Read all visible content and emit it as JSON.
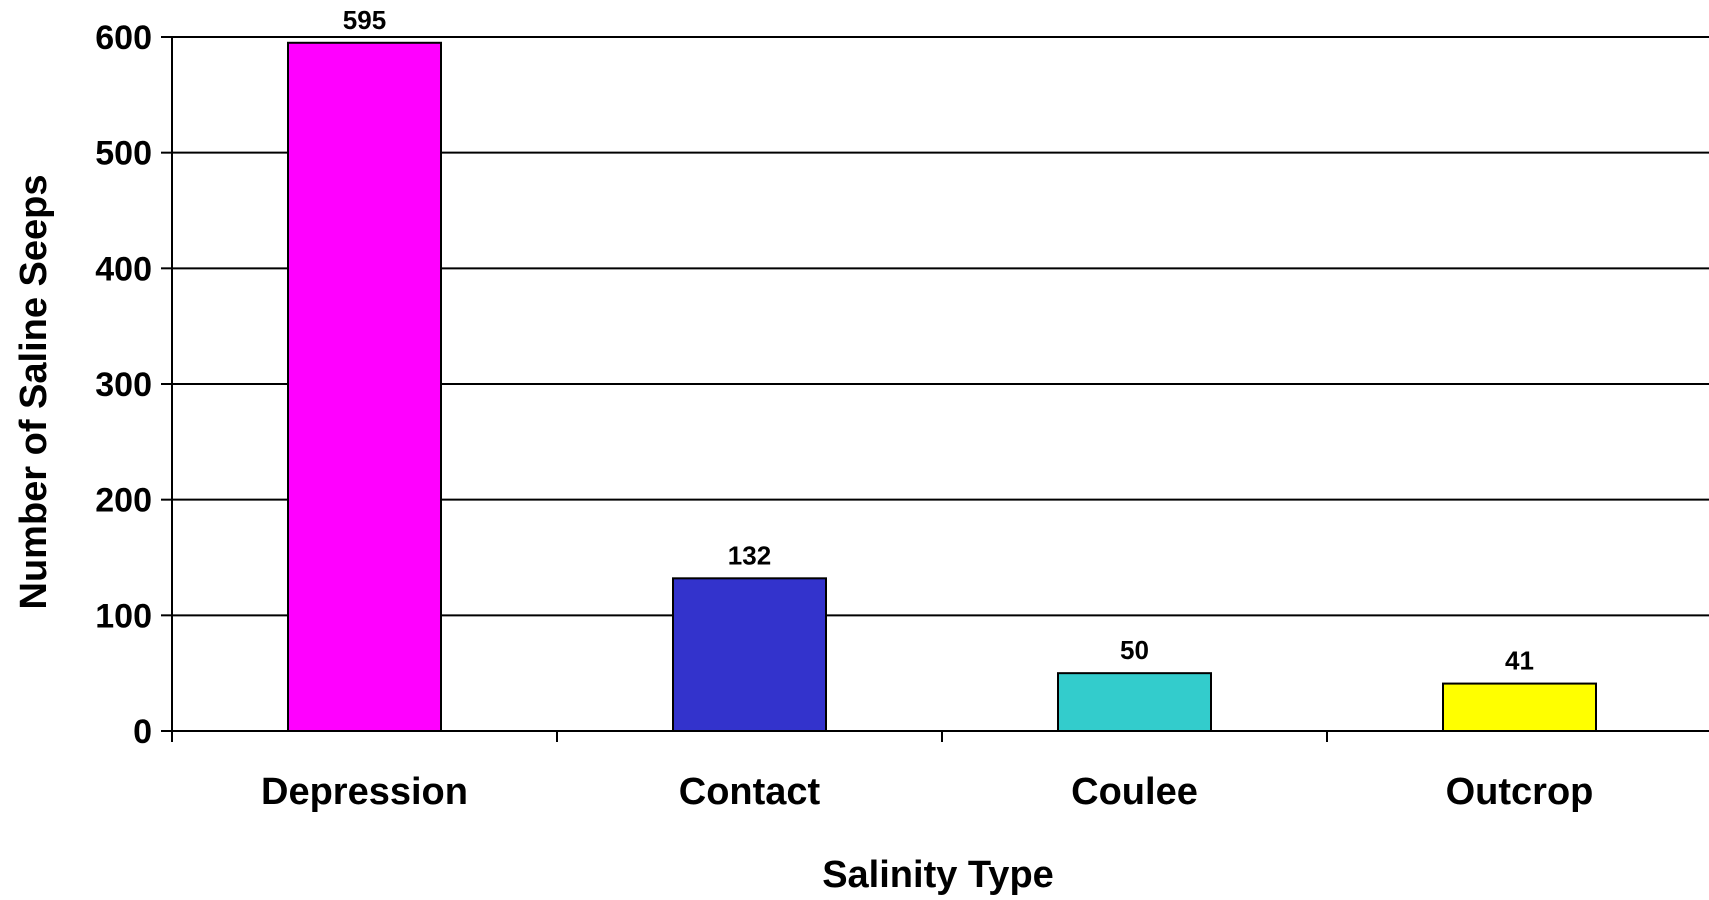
{
  "chart_data": {
    "type": "bar",
    "title": "",
    "xlabel": "Salinity Type",
    "ylabel": "Number of Saline Seeps",
    "categories": [
      "Depression",
      "Contact",
      "Coulee",
      "Outcrop"
    ],
    "values": [
      595,
      132,
      50,
      41
    ],
    "data_labels": [
      "595",
      "132",
      "50",
      "41"
    ],
    "bar_colors": [
      "#ff00ff",
      "#3333cc",
      "#33cccc",
      "#ffff00"
    ],
    "ylim": [
      0,
      600
    ],
    "yticks": [
      0,
      100,
      200,
      300,
      400,
      500,
      600
    ],
    "ytick_labels": [
      "0",
      "100",
      "200",
      "300",
      "400",
      "500",
      "600"
    ],
    "grid": true,
    "legend": "none"
  }
}
